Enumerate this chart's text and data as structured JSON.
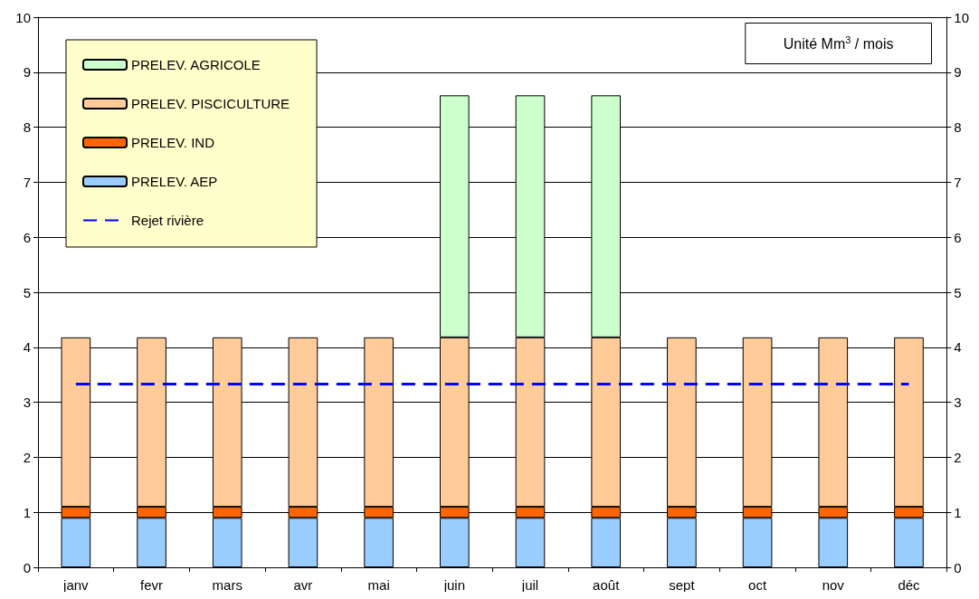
{
  "chart_data": {
    "type": "bar",
    "stacked": true,
    "categories": [
      "janv",
      "fevr",
      "mars",
      "avr",
      "mai",
      "juin",
      "juil",
      "août",
      "sept",
      "oct",
      "nov",
      "déc"
    ],
    "series": [
      {
        "name": "PRELEV. AEP",
        "color": "#99ccff",
        "values": [
          0.9,
          0.9,
          0.9,
          0.9,
          0.9,
          0.9,
          0.9,
          0.9,
          0.9,
          0.9,
          0.9,
          0.9
        ]
      },
      {
        "name": "PRELEV. IND",
        "color": "#ff6600",
        "values": [
          0.2,
          0.2,
          0.2,
          0.2,
          0.2,
          0.2,
          0.2,
          0.2,
          0.2,
          0.2,
          0.2,
          0.2
        ]
      },
      {
        "name": "PRELEV. PISCICULTURE",
        "color": "#ffcc99",
        "values": [
          3.08,
          3.08,
          3.08,
          3.08,
          3.08,
          3.08,
          3.08,
          3.08,
          3.08,
          3.08,
          3.08,
          3.08
        ]
      },
      {
        "name": "PRELEV. AGRICOLE",
        "color": "#ccffcc",
        "values": [
          null,
          null,
          null,
          null,
          null,
          4.4,
          4.4,
          4.4,
          null,
          null,
          null,
          null
        ]
      },
      {
        "name": "Rejet rivière",
        "type": "line",
        "color": "#0000ff",
        "line_style": "dashed",
        "marker": "none",
        "values": [
          3.33,
          3.33,
          3.33,
          3.33,
          3.33,
          3.33,
          3.33,
          3.33,
          3.33,
          3.33,
          3.33,
          3.33
        ]
      }
    ],
    "ylim": [
      0,
      10
    ],
    "yticks": [
      0,
      1,
      2,
      3,
      4,
      5,
      6,
      7,
      8,
      9,
      10
    ],
    "y2lim": [
      0,
      10
    ],
    "y2ticks": [
      0,
      1,
      2,
      3,
      4,
      5,
      6,
      7,
      8,
      9,
      10
    ],
    "grid": "y",
    "legend": "top left",
    "annotations": [
      "Unité Mm$^{3}$ / mois"
    ]
  }
}
